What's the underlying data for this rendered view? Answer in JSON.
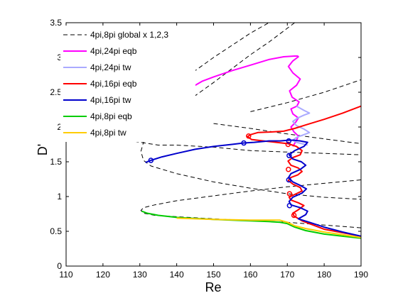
{
  "chart_data": {
    "type": "line",
    "xlabel": "Re",
    "ylabel": "D'",
    "xlim": [
      110,
      190
    ],
    "ylim": [
      0,
      3.5
    ],
    "x_ticks": [
      "110",
      "120",
      "130",
      "140",
      "150",
      "160",
      "170",
      "180",
      "190"
    ],
    "y_ticks": [
      "0",
      "0.5",
      "1",
      "1.5",
      "2",
      "2.5",
      "3",
      "3.5"
    ],
    "grid": false,
    "legend_position": "top-left",
    "series": [
      {
        "name": "4pi,8pi global x 1,2,3",
        "color": "#000000",
        "style": "dashed",
        "branches": [
          [
            [
              190,
              0.55
            ],
            [
              170,
              0.63
            ],
            [
              150,
              0.68
            ],
            [
              140,
              0.71
            ],
            [
              134,
              0.73
            ],
            [
              131,
              0.76
            ],
            [
              130.3,
              0.8
            ],
            [
              131,
              0.84
            ],
            [
              134,
              0.88
            ],
            [
              140,
              0.94
            ],
            [
              150,
              1.01
            ],
            [
              160,
              1.08
            ],
            [
              170,
              1.14
            ],
            [
              180,
              1.19
            ],
            [
              190,
              1.24
            ]
          ],
          [
            [
              172,
              3.5
            ],
            [
              165,
              3.22
            ],
            [
              160,
              3.04
            ],
            [
              150,
              2.64
            ],
            [
              140,
              2.26
            ],
            [
              136,
              2.1
            ],
            [
              133,
              1.94
            ],
            [
              131,
              1.78
            ],
            [
              130.3,
              1.65
            ],
            [
              131,
              1.52
            ],
            [
              133,
              1.44
            ],
            [
              140,
              1.33
            ],
            [
              150,
              1.21
            ],
            [
              160,
              1.12
            ],
            [
              170,
              1.04
            ],
            [
              180,
              0.99
            ],
            [
              190,
              0.96
            ]
          ],
          [
            [
              129.3,
              2.16
            ],
            [
              127.5,
              1.94
            ],
            [
              127.4,
              1.85
            ],
            [
              129,
              1.79
            ],
            [
              135,
              1.74
            ],
            [
              140,
              1.74
            ]
          ],
          [
            [
              129.3,
              2.16
            ],
            [
              135,
              2.42
            ],
            [
              140,
              2.62
            ],
            [
              150,
              3.0
            ],
            [
              160,
              3.35
            ],
            [
              165,
              3.5
            ]
          ],
          [
            [
              140,
              1.74
            ],
            [
              150,
              1.71
            ],
            [
              160,
              1.66
            ],
            [
              170,
              1.64
            ],
            [
              180,
              1.62
            ],
            [
              190,
              1.6
            ]
          ],
          [
            [
              150,
              2.05
            ],
            [
              160,
              1.98
            ],
            [
              170,
              1.9
            ],
            [
              180,
              1.83
            ],
            [
              190,
              1.76
            ]
          ],
          [
            [
              160,
              2.22
            ],
            [
              170,
              2.35
            ],
            [
              180,
              2.5
            ],
            [
              190,
              2.68
            ]
          ]
        ]
      },
      {
        "name": "4pi,24pi eqb",
        "color": "#ff00ff",
        "points": [
          [
            143.5,
            2.52
          ],
          [
            145,
            2.6
          ],
          [
            147,
            2.66
          ],
          [
            150,
            2.72
          ],
          [
            155,
            2.81
          ],
          [
            160,
            2.89
          ],
          [
            165,
            2.97
          ],
          [
            169,
            3.01
          ],
          [
            172,
            3.02
          ],
          [
            172.8,
            3.02
          ],
          [
            173,
            3.01
          ],
          [
            171.5,
            2.95
          ],
          [
            170.3,
            2.87
          ],
          [
            171.5,
            2.78
          ],
          [
            173.5,
            2.69
          ],
          [
            172.5,
            2.6
          ],
          [
            170.6,
            2.52
          ],
          [
            171.3,
            2.43
          ],
          [
            173.2,
            2.36
          ],
          [
            172.6,
            2.3
          ],
          [
            171.0,
            2.26
          ],
          [
            171.5,
            2.19
          ],
          [
            173.0,
            2.13
          ],
          [
            172.3,
            2.07
          ],
          [
            171.0,
            2.0
          ],
          [
            171.8,
            1.93
          ],
          [
            173.0,
            1.87
          ],
          [
            172.4,
            1.8
          ],
          [
            171.5,
            1.72
          ]
        ]
      },
      {
        "name": "4pi,24pi tw",
        "color": "#aaaaff",
        "points": [
          [
            172.5,
            2.3
          ],
          [
            174.5,
            2.24
          ],
          [
            176,
            2.2
          ],
          [
            174.5,
            2.17
          ],
          [
            172.8,
            2.13
          ],
          [
            171.5,
            2.08
          ],
          [
            172.5,
            2.02
          ],
          [
            174.5,
            1.97
          ],
          [
            176,
            1.92
          ],
          [
            174.5,
            1.89
          ],
          [
            172.5,
            1.85
          ],
          [
            171.5,
            1.81
          ],
          [
            172.5,
            1.78
          ],
          [
            174.0,
            1.76
          ],
          [
            175.5,
            1.74
          ]
        ]
      },
      {
        "name": "4pi,16pi eqb",
        "color": "#ff0000",
        "markers": [
          [
            159.5,
            1.87
          ],
          [
            170.2,
            1.75
          ],
          [
            170.3,
            1.39
          ],
          [
            170.6,
            1.04
          ],
          [
            171.8,
            0.73
          ]
        ],
        "points": [
          [
            190,
            2.3
          ],
          [
            185,
            2.2
          ],
          [
            180,
            2.11
          ],
          [
            175,
            2.03
          ],
          [
            172,
            1.98
          ],
          [
            169,
            1.94
          ],
          [
            166,
            1.93
          ],
          [
            162,
            1.92
          ],
          [
            160,
            1.89
          ],
          [
            159.2,
            1.86
          ],
          [
            160.3,
            1.82
          ],
          [
            163.5,
            1.8
          ],
          [
            167,
            1.78
          ],
          [
            170.2,
            1.76
          ],
          [
            172.5,
            1.72
          ],
          [
            174.0,
            1.66
          ],
          [
            173.5,
            1.6
          ],
          [
            171.5,
            1.56
          ],
          [
            170.2,
            1.51
          ],
          [
            171.0,
            1.45
          ],
          [
            173.0,
            1.41
          ],
          [
            174.0,
            1.36
          ],
          [
            172.8,
            1.31
          ],
          [
            170.8,
            1.27
          ],
          [
            170.3,
            1.23
          ],
          [
            171.5,
            1.18
          ],
          [
            173.5,
            1.13
          ],
          [
            174.0,
            1.08
          ],
          [
            172.0,
            1.03
          ],
          [
            170.5,
            0.99
          ],
          [
            171.0,
            0.95
          ],
          [
            173.0,
            0.91
          ],
          [
            174.5,
            0.87
          ],
          [
            173.0,
            0.81
          ],
          [
            171.5,
            0.76
          ],
          [
            171.8,
            0.72
          ],
          [
            174.0,
            0.65
          ],
          [
            176.5,
            0.6
          ],
          [
            180,
            0.53
          ],
          [
            185,
            0.48
          ],
          [
            190,
            0.43
          ]
        ]
      },
      {
        "name": "4pi,16pi tw",
        "color": "#0000cc",
        "markers": [
          [
            133,
            1.52
          ],
          [
            158.2,
            1.77
          ],
          [
            170.4,
            1.8
          ],
          [
            170.5,
            1.59
          ],
          [
            170.4,
            1.24
          ],
          [
            170.6,
            0.87
          ]
        ],
        "points": [
          [
            131.5,
            1.49
          ],
          [
            133,
            1.52
          ],
          [
            136,
            1.57
          ],
          [
            140,
            1.62
          ],
          [
            145,
            1.68
          ],
          [
            150,
            1.72
          ],
          [
            155,
            1.75
          ],
          [
            158.2,
            1.77
          ],
          [
            161,
            1.78
          ],
          [
            165,
            1.8
          ],
          [
            168,
            1.8
          ],
          [
            170.4,
            1.81
          ],
          [
            171.8,
            1.81
          ],
          [
            173.5,
            1.8
          ],
          [
            175.5,
            1.78
          ],
          [
            174.5,
            1.72
          ],
          [
            172.0,
            1.66
          ],
          [
            170.5,
            1.6
          ],
          [
            171.5,
            1.54
          ],
          [
            173.8,
            1.5
          ],
          [
            175.0,
            1.45
          ],
          [
            173.5,
            1.39
          ],
          [
            171.0,
            1.33
          ],
          [
            170.3,
            1.27
          ],
          [
            171.5,
            1.21
          ],
          [
            173.5,
            1.16
          ],
          [
            175.2,
            1.11
          ],
          [
            174.0,
            1.05
          ],
          [
            171.5,
            0.99
          ],
          [
            170.5,
            0.93
          ],
          [
            171.0,
            0.88
          ],
          [
            173.5,
            0.84
          ],
          [
            175.5,
            0.79
          ],
          [
            175.0,
            0.74
          ],
          [
            173.0,
            0.68
          ],
          [
            176,
            0.63
          ],
          [
            180,
            0.56
          ],
          [
            185,
            0.49
          ],
          [
            190,
            0.43
          ]
        ]
      },
      {
        "name": "4pi,8pi eqb",
        "color": "#00cc00",
        "points": [
          [
            130.5,
            0.79
          ],
          [
            132,
            0.76
          ],
          [
            135,
            0.73
          ],
          [
            140,
            0.7
          ],
          [
            150,
            0.67
          ],
          [
            160,
            0.65
          ],
          [
            165,
            0.64
          ],
          [
            168,
            0.63
          ],
          [
            170,
            0.61
          ],
          [
            172,
            0.56
          ],
          [
            175,
            0.51
          ],
          [
            180,
            0.46
          ],
          [
            185,
            0.43
          ],
          [
            190,
            0.4
          ]
        ]
      },
      {
        "name": "4pi,8pi tw",
        "color": "#ffcc00",
        "points": [
          [
            140,
            0.69
          ],
          [
            150,
            0.67
          ],
          [
            160,
            0.66
          ],
          [
            165,
            0.66
          ],
          [
            168,
            0.66
          ],
          [
            170,
            0.63
          ],
          [
            172,
            0.58
          ],
          [
            175,
            0.54
          ],
          [
            180,
            0.49
          ],
          [
            185,
            0.45
          ],
          [
            190,
            0.41
          ]
        ]
      }
    ]
  }
}
